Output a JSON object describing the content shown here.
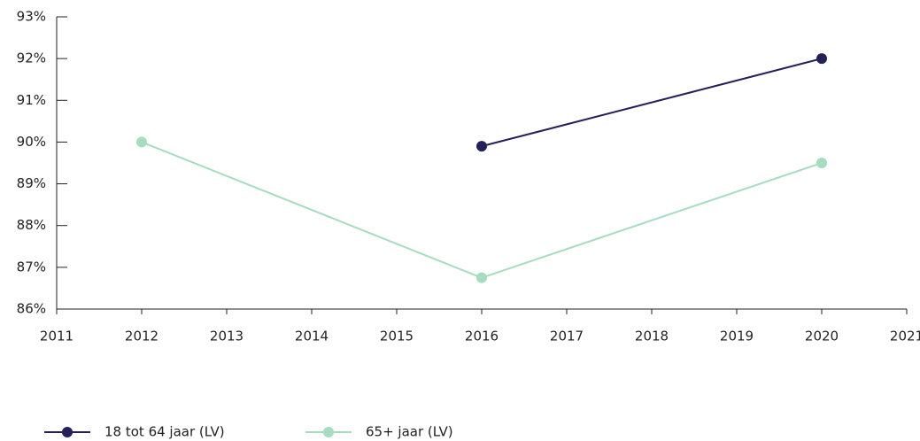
{
  "chart_data": {
    "type": "line",
    "x": [
      2012,
      2016,
      2020
    ],
    "series": [
      {
        "name": "18 tot 64 jaar (LV)",
        "color": "#24215a",
        "values": [
          null,
          89.9,
          92.0
        ]
      },
      {
        "name": "65+ jaar (LV)",
        "color": "#a6dcc0",
        "values": [
          90.0,
          86.75,
          89.5
        ]
      }
    ],
    "xlim": [
      2011,
      2021
    ],
    "xticks": [
      2011,
      2012,
      2013,
      2014,
      2015,
      2016,
      2017,
      2018,
      2019,
      2020,
      2021
    ],
    "ylim": [
      86,
      93
    ],
    "yticks": [
      {
        "value": 86,
        "label": "86%"
      },
      {
        "value": 87,
        "label": "87%"
      },
      {
        "value": 88,
        "label": "88%"
      },
      {
        "value": 89,
        "label": "89%"
      },
      {
        "value": 90,
        "label": "90%"
      },
      {
        "value": 91,
        "label": "91%"
      },
      {
        "value": 92,
        "label": "92%"
      },
      {
        "value": 93,
        "label": "93%"
      }
    ],
    "grid": false,
    "legend": "bottom-left"
  }
}
